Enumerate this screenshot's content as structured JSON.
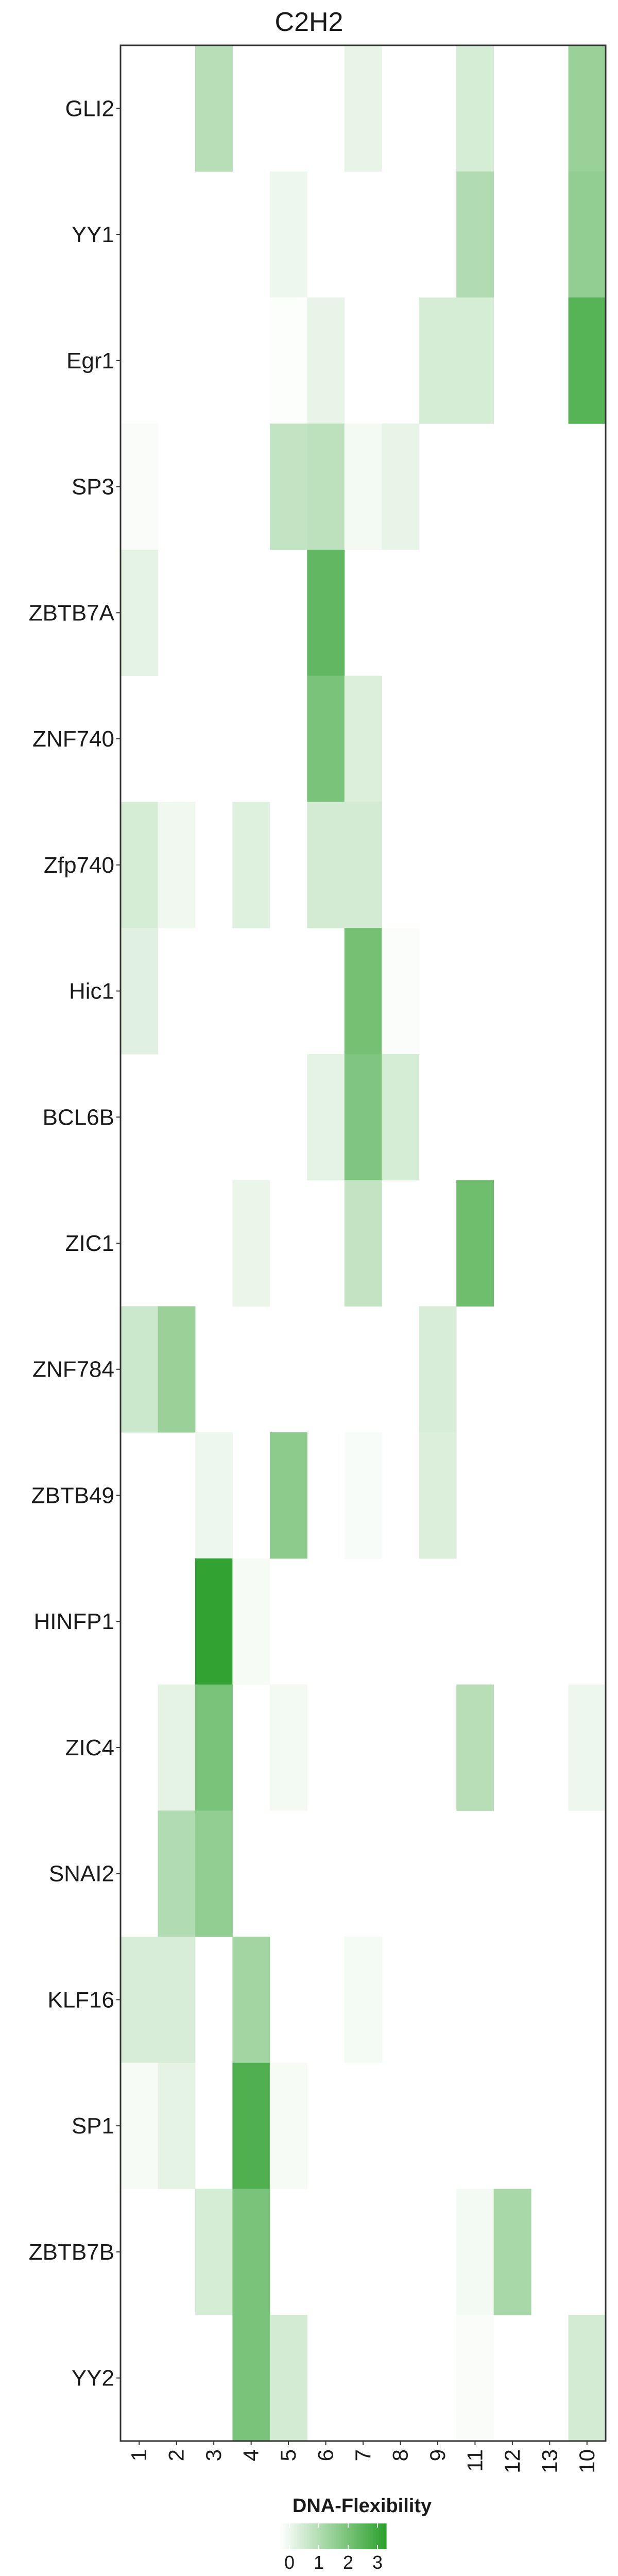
{
  "chart_data": {
    "type": "heatmap",
    "title": "C2H2",
    "columns": [
      "1",
      "2",
      "3",
      "4",
      "5",
      "6",
      "7",
      "8",
      "9",
      "11",
      "12",
      "13",
      "10"
    ],
    "rows": [
      "GLI2",
      "YY1",
      "Egr1",
      "SP3",
      "ZBTB7A",
      "ZNF740",
      "Zfp740",
      "Hic1",
      "BCL6B",
      "ZIC1",
      "ZNF784",
      "ZBTB49",
      "HINFP1",
      "ZIC4",
      "SNAI2",
      "KLF16",
      "SP1",
      "ZBTB7B",
      "YY2"
    ],
    "values": [
      [
        0,
        0,
        1.2,
        0,
        0,
        0,
        0.4,
        0,
        0,
        0.7,
        0,
        0,
        1.7
      ],
      [
        0,
        0,
        0,
        0,
        0.3,
        0,
        0,
        0,
        0,
        1.3,
        0,
        0,
        1.8
      ],
      [
        0,
        0,
        0,
        0,
        0.05,
        0.4,
        0,
        0,
        0.7,
        0.7,
        0,
        0,
        2.8
      ],
      [
        0.1,
        0,
        0,
        0,
        1.0,
        1.1,
        0.2,
        0.4,
        0,
        0,
        0,
        0,
        0
      ],
      [
        0.45,
        0,
        0,
        0,
        0,
        2.6,
        0,
        0,
        0,
        0,
        0,
        0,
        0
      ],
      [
        0,
        0,
        0,
        0,
        0,
        2.2,
        0.6,
        0,
        0,
        0,
        0,
        0,
        0
      ],
      [
        0.7,
        0.25,
        0,
        0.55,
        0,
        0.75,
        0.75,
        0,
        0,
        0,
        0,
        0,
        0
      ],
      [
        0.5,
        0,
        0,
        0,
        0,
        0,
        2.3,
        0.08,
        0,
        0,
        0,
        0,
        0
      ],
      [
        0,
        0,
        0,
        0,
        0,
        0.45,
        2.1,
        0.7,
        0,
        0,
        0,
        0,
        0
      ],
      [
        0,
        0,
        0,
        0.35,
        0,
        0,
        1.0,
        0,
        0,
        2.4,
        0,
        0,
        0
      ],
      [
        0.85,
        1.7,
        0,
        0,
        0,
        0,
        0,
        0,
        0.65,
        0,
        0,
        0,
        0
      ],
      [
        0,
        0,
        0.3,
        0,
        1.9,
        0,
        0.12,
        0,
        0.6,
        0,
        0,
        0,
        0
      ],
      [
        0,
        0,
        3.4,
        0.15,
        0,
        0,
        0,
        0,
        0,
        0,
        0,
        0,
        0
      ],
      [
        0,
        0.45,
        2.2,
        0,
        0.2,
        0,
        0,
        0,
        0,
        1.2,
        0,
        0,
        0.3
      ],
      [
        0,
        1.3,
        1.8,
        0,
        0,
        0,
        0,
        0,
        0,
        0,
        0,
        0,
        0
      ],
      [
        0.65,
        0.65,
        0,
        1.55,
        0,
        0,
        0.18,
        0,
        0,
        0,
        0,
        0,
        0
      ],
      [
        0.15,
        0.45,
        0,
        2.9,
        0.15,
        0,
        0,
        0,
        0,
        0,
        0,
        0,
        0
      ],
      [
        0,
        0,
        0.7,
        2.2,
        0,
        0,
        0,
        0,
        0,
        0.2,
        1.45,
        0,
        0
      ],
      [
        0,
        0,
        0,
        2.2,
        0.75,
        0,
        0,
        0,
        0,
        0.1,
        0,
        0,
        0.75
      ]
    ],
    "scale": {
      "min": 0,
      "max": 3.5,
      "low_color": "#ffffff",
      "high_color": "#2ca02c"
    },
    "legend": {
      "title": "DNA-Flexibility",
      "ticks": [
        0,
        1,
        2,
        3
      ],
      "position": "bottom"
    },
    "xlabel": "",
    "ylabel": "",
    "grid": false
  }
}
